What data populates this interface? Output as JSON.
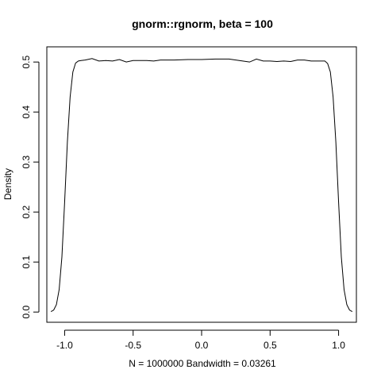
{
  "chart_data": {
    "type": "line",
    "title": "gnorm::rgnorm, beta = 100",
    "xlabel": "N = 1000000   Bandwidth = 0.03261",
    "ylabel": "Density",
    "xlim": [
      -1.13,
      1.13
    ],
    "ylim": [
      0,
      0.51
    ],
    "x_ticks": [
      -1.0,
      -0.5,
      0.0,
      0.5,
      1.0
    ],
    "x_tick_labels": [
      "-1.0",
      "-0.5",
      "0.0",
      "0.5",
      "1.0"
    ],
    "y_ticks": [
      0.0,
      0.1,
      0.2,
      0.3,
      0.4,
      0.5
    ],
    "y_tick_labels": [
      "0.0",
      "0.1",
      "0.2",
      "0.3",
      "0.4",
      "0.5"
    ],
    "grid": false,
    "legend": "none",
    "series": [
      {
        "x": [
          -1.1,
          -1.08,
          -1.06,
          -1.04,
          -1.02,
          -1.0,
          -0.98,
          -0.96,
          -0.94,
          -0.92,
          -0.9,
          -0.88,
          -0.85,
          -0.8,
          -0.75,
          -0.7,
          -0.65,
          -0.6,
          -0.55,
          -0.5,
          -0.45,
          -0.4,
          -0.35,
          -0.3,
          -0.2,
          -0.1,
          0.0,
          0.1,
          0.2,
          0.3,
          0.35,
          0.4,
          0.45,
          0.5,
          0.55,
          0.6,
          0.65,
          0.7,
          0.75,
          0.8,
          0.85,
          0.88,
          0.9,
          0.92,
          0.94,
          0.96,
          0.98,
          1.0,
          1.02,
          1.04,
          1.06,
          1.08,
          1.1
        ],
        "y": [
          0.001,
          0.004,
          0.015,
          0.045,
          0.11,
          0.22,
          0.34,
          0.43,
          0.48,
          0.498,
          0.502,
          0.503,
          0.504,
          0.507,
          0.502,
          0.503,
          0.502,
          0.505,
          0.5,
          0.503,
          0.503,
          0.503,
          0.502,
          0.504,
          0.504,
          0.505,
          0.505,
          0.506,
          0.506,
          0.502,
          0.5,
          0.506,
          0.502,
          0.502,
          0.501,
          0.502,
          0.501,
          0.504,
          0.504,
          0.502,
          0.502,
          0.502,
          0.502,
          0.497,
          0.48,
          0.43,
          0.34,
          0.22,
          0.11,
          0.045,
          0.015,
          0.004,
          0.001
        ]
      }
    ]
  }
}
